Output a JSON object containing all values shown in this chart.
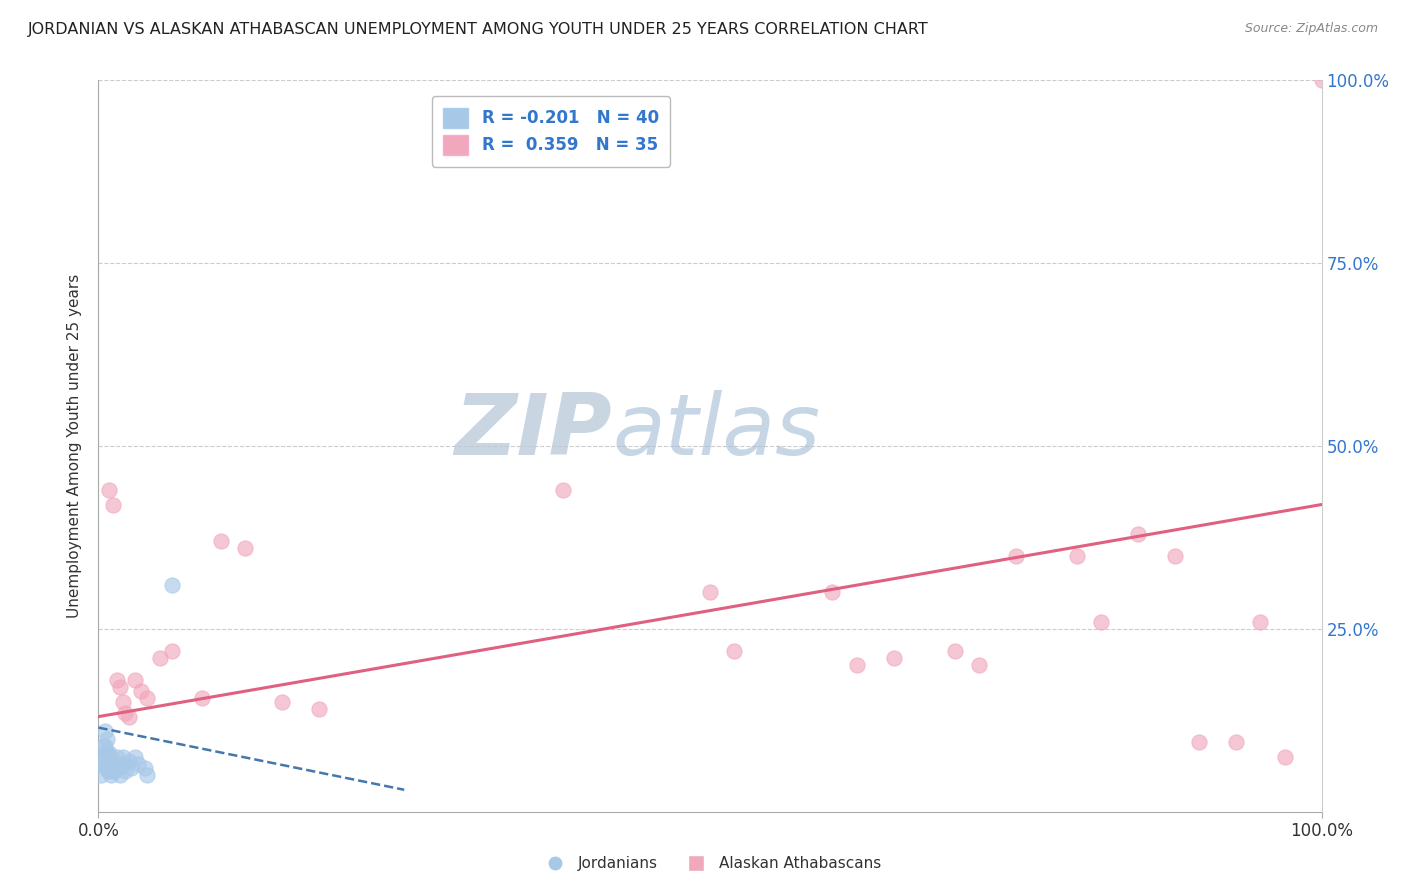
{
  "title": "JORDANIAN VS ALASKAN ATHABASCAN UNEMPLOYMENT AMONG YOUTH UNDER 25 YEARS CORRELATION CHART",
  "source_text": "Source: ZipAtlas.com",
  "ylabel": "Unemployment Among Youth under 25 years",
  "xlim": [
    0.0,
    1.0
  ],
  "ylim": [
    0.0,
    1.0
  ],
  "xtick_labels": [
    "0.0%",
    "100.0%"
  ],
  "xtick_positions": [
    0.0,
    1.0
  ],
  "ytick_positions": [
    0.25,
    0.5,
    0.75,
    1.0
  ],
  "right_ytick_labels": [
    "25.0%",
    "50.0%",
    "75.0%",
    "100.0%"
  ],
  "right_ytick_positions": [
    0.25,
    0.5,
    0.75,
    1.0
  ],
  "legend_R_blue": "-0.201",
  "legend_N_blue": "40",
  "legend_R_pink": "0.359",
  "legend_N_pink": "35",
  "color_blue": "#a8c8e8",
  "color_pink": "#f0a8bc",
  "trendline_blue_color": "#4477aa",
  "trendline_pink_color": "#e06080",
  "watermark_ZIP_color": "#c0cfe0",
  "watermark_atlas_color": "#b8d0e8",
  "background_color": "#ffffff",
  "grid_color": "#cccccc",
  "blue_scatter_x": [
    0.002,
    0.002,
    0.003,
    0.004,
    0.004,
    0.005,
    0.005,
    0.006,
    0.006,
    0.007,
    0.007,
    0.008,
    0.008,
    0.009,
    0.009,
    0.01,
    0.01,
    0.01,
    0.011,
    0.011,
    0.012,
    0.012,
    0.013,
    0.013,
    0.014,
    0.015,
    0.015,
    0.016,
    0.017,
    0.018,
    0.02,
    0.021,
    0.022,
    0.025,
    0.027,
    0.03,
    0.032,
    0.038,
    0.04,
    0.06
  ],
  "blue_scatter_y": [
    0.07,
    0.05,
    0.065,
    0.09,
    0.07,
    0.11,
    0.09,
    0.08,
    0.06,
    0.1,
    0.08,
    0.065,
    0.055,
    0.08,
    0.065,
    0.07,
    0.06,
    0.05,
    0.065,
    0.055,
    0.07,
    0.06,
    0.065,
    0.055,
    0.06,
    0.075,
    0.06,
    0.065,
    0.06,
    0.05,
    0.075,
    0.065,
    0.055,
    0.07,
    0.06,
    0.075,
    0.065,
    0.06,
    0.05,
    0.31
  ],
  "pink_scatter_x": [
    0.009,
    0.012,
    0.015,
    0.018,
    0.02,
    0.022,
    0.025,
    0.03,
    0.035,
    0.04,
    0.05,
    0.06,
    0.085,
    0.1,
    0.12,
    0.15,
    0.18,
    0.38,
    0.5,
    0.52,
    0.6,
    0.62,
    0.65,
    0.7,
    0.72,
    0.75,
    0.8,
    0.82,
    0.85,
    0.88,
    0.9,
    0.93,
    0.95,
    0.97,
    1.0
  ],
  "pink_scatter_y": [
    0.44,
    0.42,
    0.18,
    0.17,
    0.15,
    0.135,
    0.13,
    0.18,
    0.165,
    0.155,
    0.21,
    0.22,
    0.155,
    0.37,
    0.36,
    0.15,
    0.14,
    0.44,
    0.3,
    0.22,
    0.3,
    0.2,
    0.21,
    0.22,
    0.2,
    0.35,
    0.35,
    0.26,
    0.38,
    0.35,
    0.095,
    0.095,
    0.26,
    0.075,
    1.0
  ],
  "blue_trendline_x": [
    0.0,
    0.25
  ],
  "blue_trendline_y": [
    0.115,
    0.03
  ],
  "pink_trendline_x": [
    0.0,
    1.0
  ],
  "pink_trendline_y": [
    0.13,
    0.42
  ]
}
